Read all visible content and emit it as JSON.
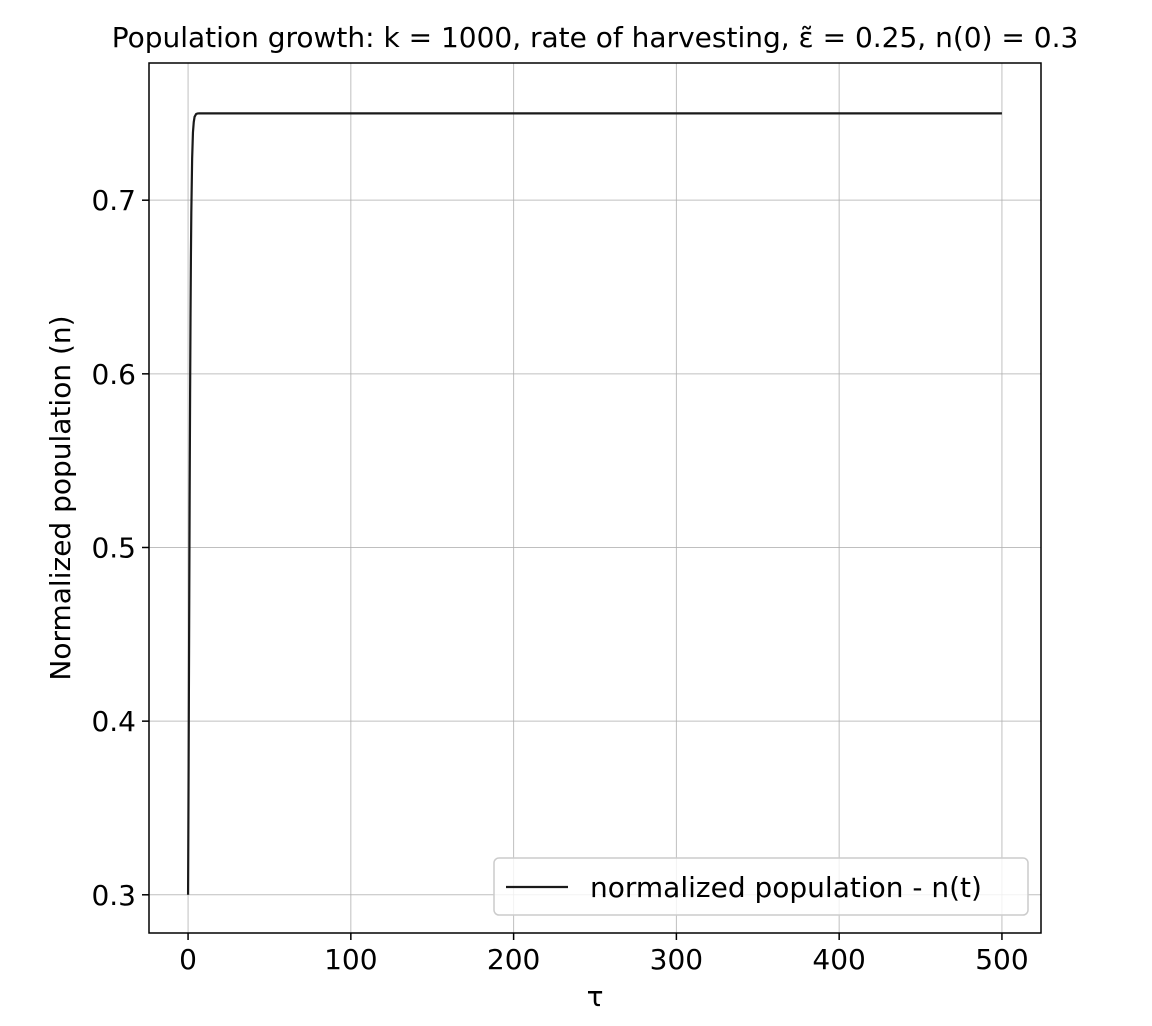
{
  "chart_data": {
    "type": "line",
    "title": "Population growth: k = 1000, rate of harvesting, ε̃ = 0.25, n(0) = 0.3",
    "xlabel": "τ",
    "ylabel": "Normalized population (n)",
    "xlim": [
      -24,
      524
    ],
    "ylim": [
      0.278,
      0.779
    ],
    "x_ticks": [
      0,
      100,
      200,
      300,
      400,
      500
    ],
    "x_tick_labels": [
      "0",
      "100",
      "200",
      "300",
      "400",
      "500"
    ],
    "y_ticks": [
      0.3,
      0.4,
      0.5,
      0.6,
      0.7
    ],
    "y_tick_labels": [
      "0.3",
      "0.4",
      "0.5",
      "0.6",
      "0.7"
    ],
    "grid": true,
    "legend_position": "lower-right",
    "series": [
      {
        "name": "normalized population - n(t)",
        "color": "#1a1a1a",
        "x": [
          0,
          0.25,
          0.5,
          0.75,
          1,
          1.25,
          1.5,
          1.75,
          2,
          2.5,
          3,
          3.5,
          4,
          5,
          6,
          7,
          8,
          10,
          12,
          15,
          20,
          30,
          50,
          100,
          200,
          300,
          400,
          500
        ],
        "values": [
          0.3,
          0.354,
          0.414,
          0.476,
          0.535,
          0.588,
          0.632,
          0.667,
          0.693,
          0.724,
          0.739,
          0.745,
          0.748,
          0.7497,
          0.74995,
          0.75,
          0.75,
          0.75,
          0.75,
          0.75,
          0.75,
          0.75,
          0.75,
          0.75,
          0.75,
          0.75,
          0.75,
          0.75
        ]
      }
    ]
  }
}
